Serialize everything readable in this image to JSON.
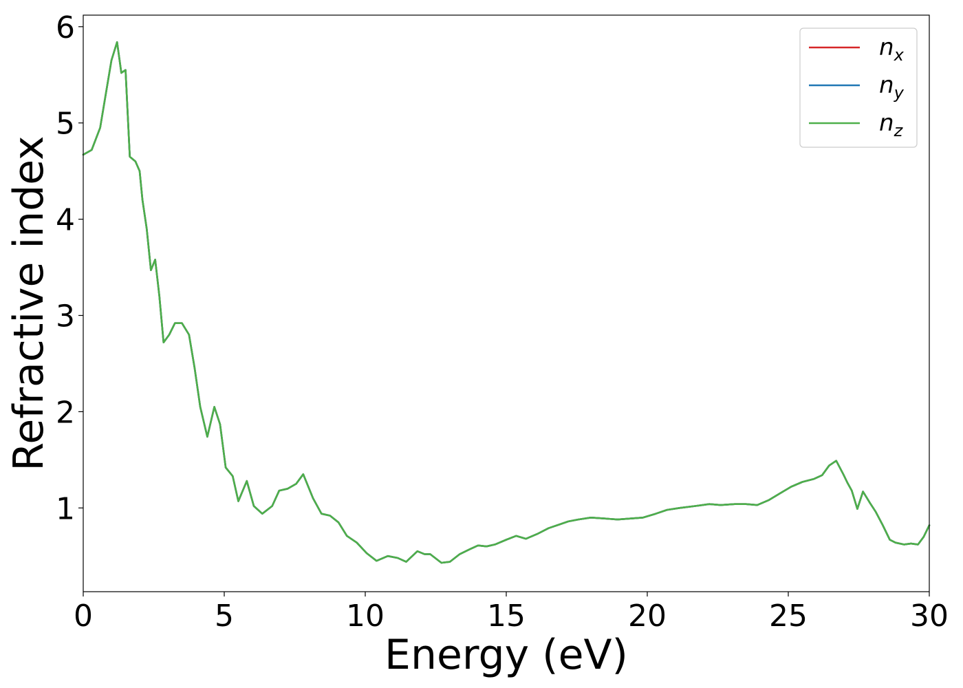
{
  "chart_data": {
    "type": "line",
    "xlabel": "Energy (eV)",
    "ylabel": "Refractive index",
    "xlim": [
      0,
      30
    ],
    "ylim": [
      0.13,
      6.12
    ],
    "xticks": [
      0,
      5,
      10,
      15,
      20,
      25,
      30
    ],
    "xtick_labels": [
      "0",
      "5",
      "10",
      "15",
      "20",
      "25",
      "30"
    ],
    "yticks": [
      1,
      2,
      3,
      4,
      5,
      6
    ],
    "ytick_labels": [
      "1",
      "2",
      "3",
      "4",
      "5",
      "6"
    ],
    "grid": false,
    "legend_position": "top-right",
    "x": [
      0,
      0.3,
      0.6,
      0.8,
      1.0,
      1.2,
      1.35,
      1.5,
      1.65,
      1.85,
      2.0,
      2.1,
      2.25,
      2.4,
      2.55,
      2.7,
      2.85,
      3.05,
      3.25,
      3.5,
      3.75,
      3.95,
      4.15,
      4.4,
      4.65,
      4.85,
      5.05,
      5.3,
      5.5,
      5.8,
      6.05,
      6.35,
      6.7,
      6.95,
      7.25,
      7.55,
      7.8,
      8.15,
      8.45,
      8.75,
      9.05,
      9.35,
      9.7,
      10.05,
      10.4,
      10.8,
      11.15,
      11.45,
      11.85,
      12.1,
      12.3,
      12.7,
      13.0,
      13.35,
      13.7,
      14.0,
      14.3,
      14.6,
      15.0,
      15.35,
      15.7,
      16.1,
      16.5,
      16.9,
      17.2,
      17.55,
      18.0,
      18.5,
      18.95,
      19.4,
      19.85,
      20.3,
      20.7,
      21.15,
      21.7,
      22.2,
      22.6,
      23.1,
      23.5,
      23.9,
      24.3,
      24.7,
      25.1,
      25.5,
      25.9,
      26.2,
      26.45,
      26.7,
      26.95,
      27.1,
      27.25,
      27.45,
      27.65,
      27.9,
      28.1,
      28.35,
      28.6,
      28.8,
      29.1,
      29.35,
      29.6,
      29.8,
      30.0
    ],
    "series": [
      {
        "name": "n_x",
        "color": "#d62728",
        "values": [
          4.67,
          4.72,
          4.95,
          5.3,
          5.65,
          5.84,
          5.52,
          5.55,
          4.65,
          4.6,
          4.5,
          4.2,
          3.9,
          3.47,
          3.58,
          3.2,
          2.72,
          2.8,
          2.92,
          2.92,
          2.8,
          2.45,
          2.05,
          1.74,
          2.05,
          1.87,
          1.42,
          1.33,
          1.07,
          1.28,
          1.02,
          0.94,
          1.02,
          1.18,
          1.2,
          1.25,
          1.35,
          1.1,
          0.94,
          0.92,
          0.85,
          0.71,
          0.64,
          0.53,
          0.45,
          0.5,
          0.48,
          0.44,
          0.55,
          0.52,
          0.52,
          0.43,
          0.44,
          0.52,
          0.57,
          0.61,
          0.6,
          0.62,
          0.67,
          0.71,
          0.68,
          0.73,
          0.79,
          0.83,
          0.86,
          0.88,
          0.9,
          0.89,
          0.88,
          0.89,
          0.9,
          0.94,
          0.98,
          1.0,
          1.02,
          1.04,
          1.03,
          1.04,
          1.04,
          1.03,
          1.08,
          1.15,
          1.22,
          1.27,
          1.3,
          1.34,
          1.44,
          1.49,
          1.35,
          1.26,
          1.18,
          0.99,
          1.17,
          1.05,
          0.96,
          0.82,
          0.67,
          0.64,
          0.62,
          0.63,
          0.62,
          0.7,
          0.82
        ]
      },
      {
        "name": "n_y",
        "color": "#1f77b4",
        "values": [
          4.67,
          4.72,
          4.95,
          5.3,
          5.65,
          5.84,
          5.52,
          5.55,
          4.65,
          4.6,
          4.5,
          4.2,
          3.9,
          3.47,
          3.58,
          3.2,
          2.72,
          2.8,
          2.92,
          2.92,
          2.8,
          2.45,
          2.05,
          1.74,
          2.05,
          1.87,
          1.42,
          1.33,
          1.07,
          1.28,
          1.02,
          0.94,
          1.02,
          1.18,
          1.2,
          1.25,
          1.35,
          1.1,
          0.94,
          0.92,
          0.85,
          0.71,
          0.64,
          0.53,
          0.45,
          0.5,
          0.48,
          0.44,
          0.55,
          0.52,
          0.52,
          0.43,
          0.44,
          0.52,
          0.57,
          0.61,
          0.6,
          0.62,
          0.67,
          0.71,
          0.68,
          0.73,
          0.79,
          0.83,
          0.86,
          0.88,
          0.9,
          0.89,
          0.88,
          0.89,
          0.9,
          0.94,
          0.98,
          1.0,
          1.02,
          1.04,
          1.03,
          1.04,
          1.04,
          1.03,
          1.08,
          1.15,
          1.22,
          1.27,
          1.3,
          1.34,
          1.44,
          1.49,
          1.35,
          1.26,
          1.18,
          0.99,
          1.17,
          1.05,
          0.96,
          0.82,
          0.67,
          0.64,
          0.62,
          0.63,
          0.62,
          0.7,
          0.82
        ]
      },
      {
        "name": "n_z",
        "color": "#4daf4a",
        "values": [
          4.67,
          4.72,
          4.95,
          5.3,
          5.65,
          5.84,
          5.52,
          5.55,
          4.65,
          4.6,
          4.5,
          4.2,
          3.9,
          3.47,
          3.58,
          3.2,
          2.72,
          2.8,
          2.92,
          2.92,
          2.8,
          2.45,
          2.05,
          1.74,
          2.05,
          1.87,
          1.42,
          1.33,
          1.07,
          1.28,
          1.02,
          0.94,
          1.02,
          1.18,
          1.2,
          1.25,
          1.35,
          1.1,
          0.94,
          0.92,
          0.85,
          0.71,
          0.64,
          0.53,
          0.45,
          0.5,
          0.48,
          0.44,
          0.55,
          0.52,
          0.52,
          0.43,
          0.44,
          0.52,
          0.57,
          0.61,
          0.6,
          0.62,
          0.67,
          0.71,
          0.68,
          0.73,
          0.79,
          0.83,
          0.86,
          0.88,
          0.9,
          0.89,
          0.88,
          0.89,
          0.9,
          0.94,
          0.98,
          1.0,
          1.02,
          1.04,
          1.03,
          1.04,
          1.04,
          1.03,
          1.08,
          1.15,
          1.22,
          1.27,
          1.3,
          1.34,
          1.44,
          1.49,
          1.35,
          1.26,
          1.18,
          0.99,
          1.17,
          1.05,
          0.96,
          0.82,
          0.67,
          0.64,
          0.62,
          0.63,
          0.62,
          0.7,
          0.82
        ]
      }
    ],
    "legend": [
      {
        "symbol": "n",
        "subscript": "x",
        "color": "#d62728"
      },
      {
        "symbol": "n",
        "subscript": "y",
        "color": "#1f77b4"
      },
      {
        "symbol": "n",
        "subscript": "z",
        "color": "#4daf4a"
      }
    ]
  }
}
